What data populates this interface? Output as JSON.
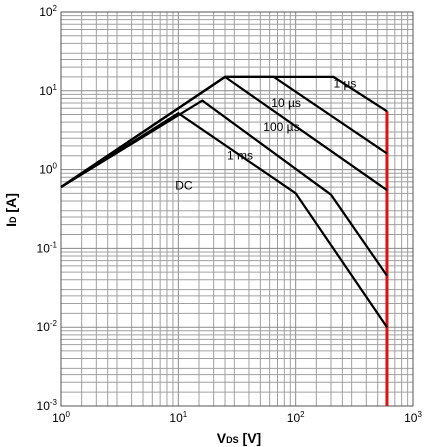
{
  "chart_data": {
    "type": "line",
    "xscale": "log",
    "yscale": "log",
    "xlim": [
      1,
      1000
    ],
    "ylim": [
      0.001,
      100
    ],
    "grid": true,
    "x_ticks": [
      {
        "base": "10",
        "exp": "0",
        "v": 1
      },
      {
        "base": "10",
        "exp": "1",
        "v": 10
      },
      {
        "base": "10",
        "exp": "2",
        "v": 100
      },
      {
        "base": "10",
        "exp": "3",
        "v": 1000
      }
    ],
    "y_ticks": [
      {
        "base": "10",
        "exp": "-3",
        "v": 0.001
      },
      {
        "base": "10",
        "exp": "-2",
        "v": 0.01
      },
      {
        "base": "10",
        "exp": "-1",
        "v": 0.1
      },
      {
        "base": "10",
        "exp": "0",
        "v": 1
      },
      {
        "base": "10",
        "exp": "1",
        "v": 10
      },
      {
        "base": "10",
        "exp": "2",
        "v": 100
      }
    ],
    "xlabel": {
      "main": "V",
      "sub": "DS",
      "unit": " [V]"
    },
    "ylabel": {
      "main": "I",
      "sub": "D",
      "unit": " [A]"
    },
    "series": [
      {
        "name": "1 µs",
        "x": [
          1,
          25,
          210,
          600
        ],
        "y": [
          0.6,
          15,
          15,
          5.5
        ]
      },
      {
        "name": "10 µs",
        "x": [
          1,
          25,
          65,
          600
        ],
        "y": [
          0.6,
          15,
          15,
          1.6
        ]
      },
      {
        "name": "100 µs",
        "x": [
          1,
          25,
          600
        ],
        "y": [
          0.6,
          15,
          0.55
        ]
      },
      {
        "name": "1 ms",
        "x": [
          1,
          16,
          200,
          600
        ],
        "y": [
          0.6,
          7.5,
          0.48,
          0.045
        ]
      },
      {
        "name": "DC",
        "x": [
          1,
          10,
          100,
          600
        ],
        "y": [
          0.6,
          5.2,
          0.5,
          0.01
        ]
      }
    ],
    "labels": [
      {
        "text": "1 µs",
        "x": 210,
        "y": 11
      },
      {
        "text": "10 µs",
        "x": 62,
        "y": 6.2
      },
      {
        "text": "100 µs",
        "x": 53,
        "y": 3.1
      },
      {
        "text": "1 ms",
        "x": 26,
        "y": 1.35
      },
      {
        "text": "DC",
        "x": 9.4,
        "y": 0.56
      }
    ],
    "limit_line": {
      "x": 600,
      "ymin": 0.001,
      "ymax": 5.5,
      "color": "#e01010"
    }
  }
}
